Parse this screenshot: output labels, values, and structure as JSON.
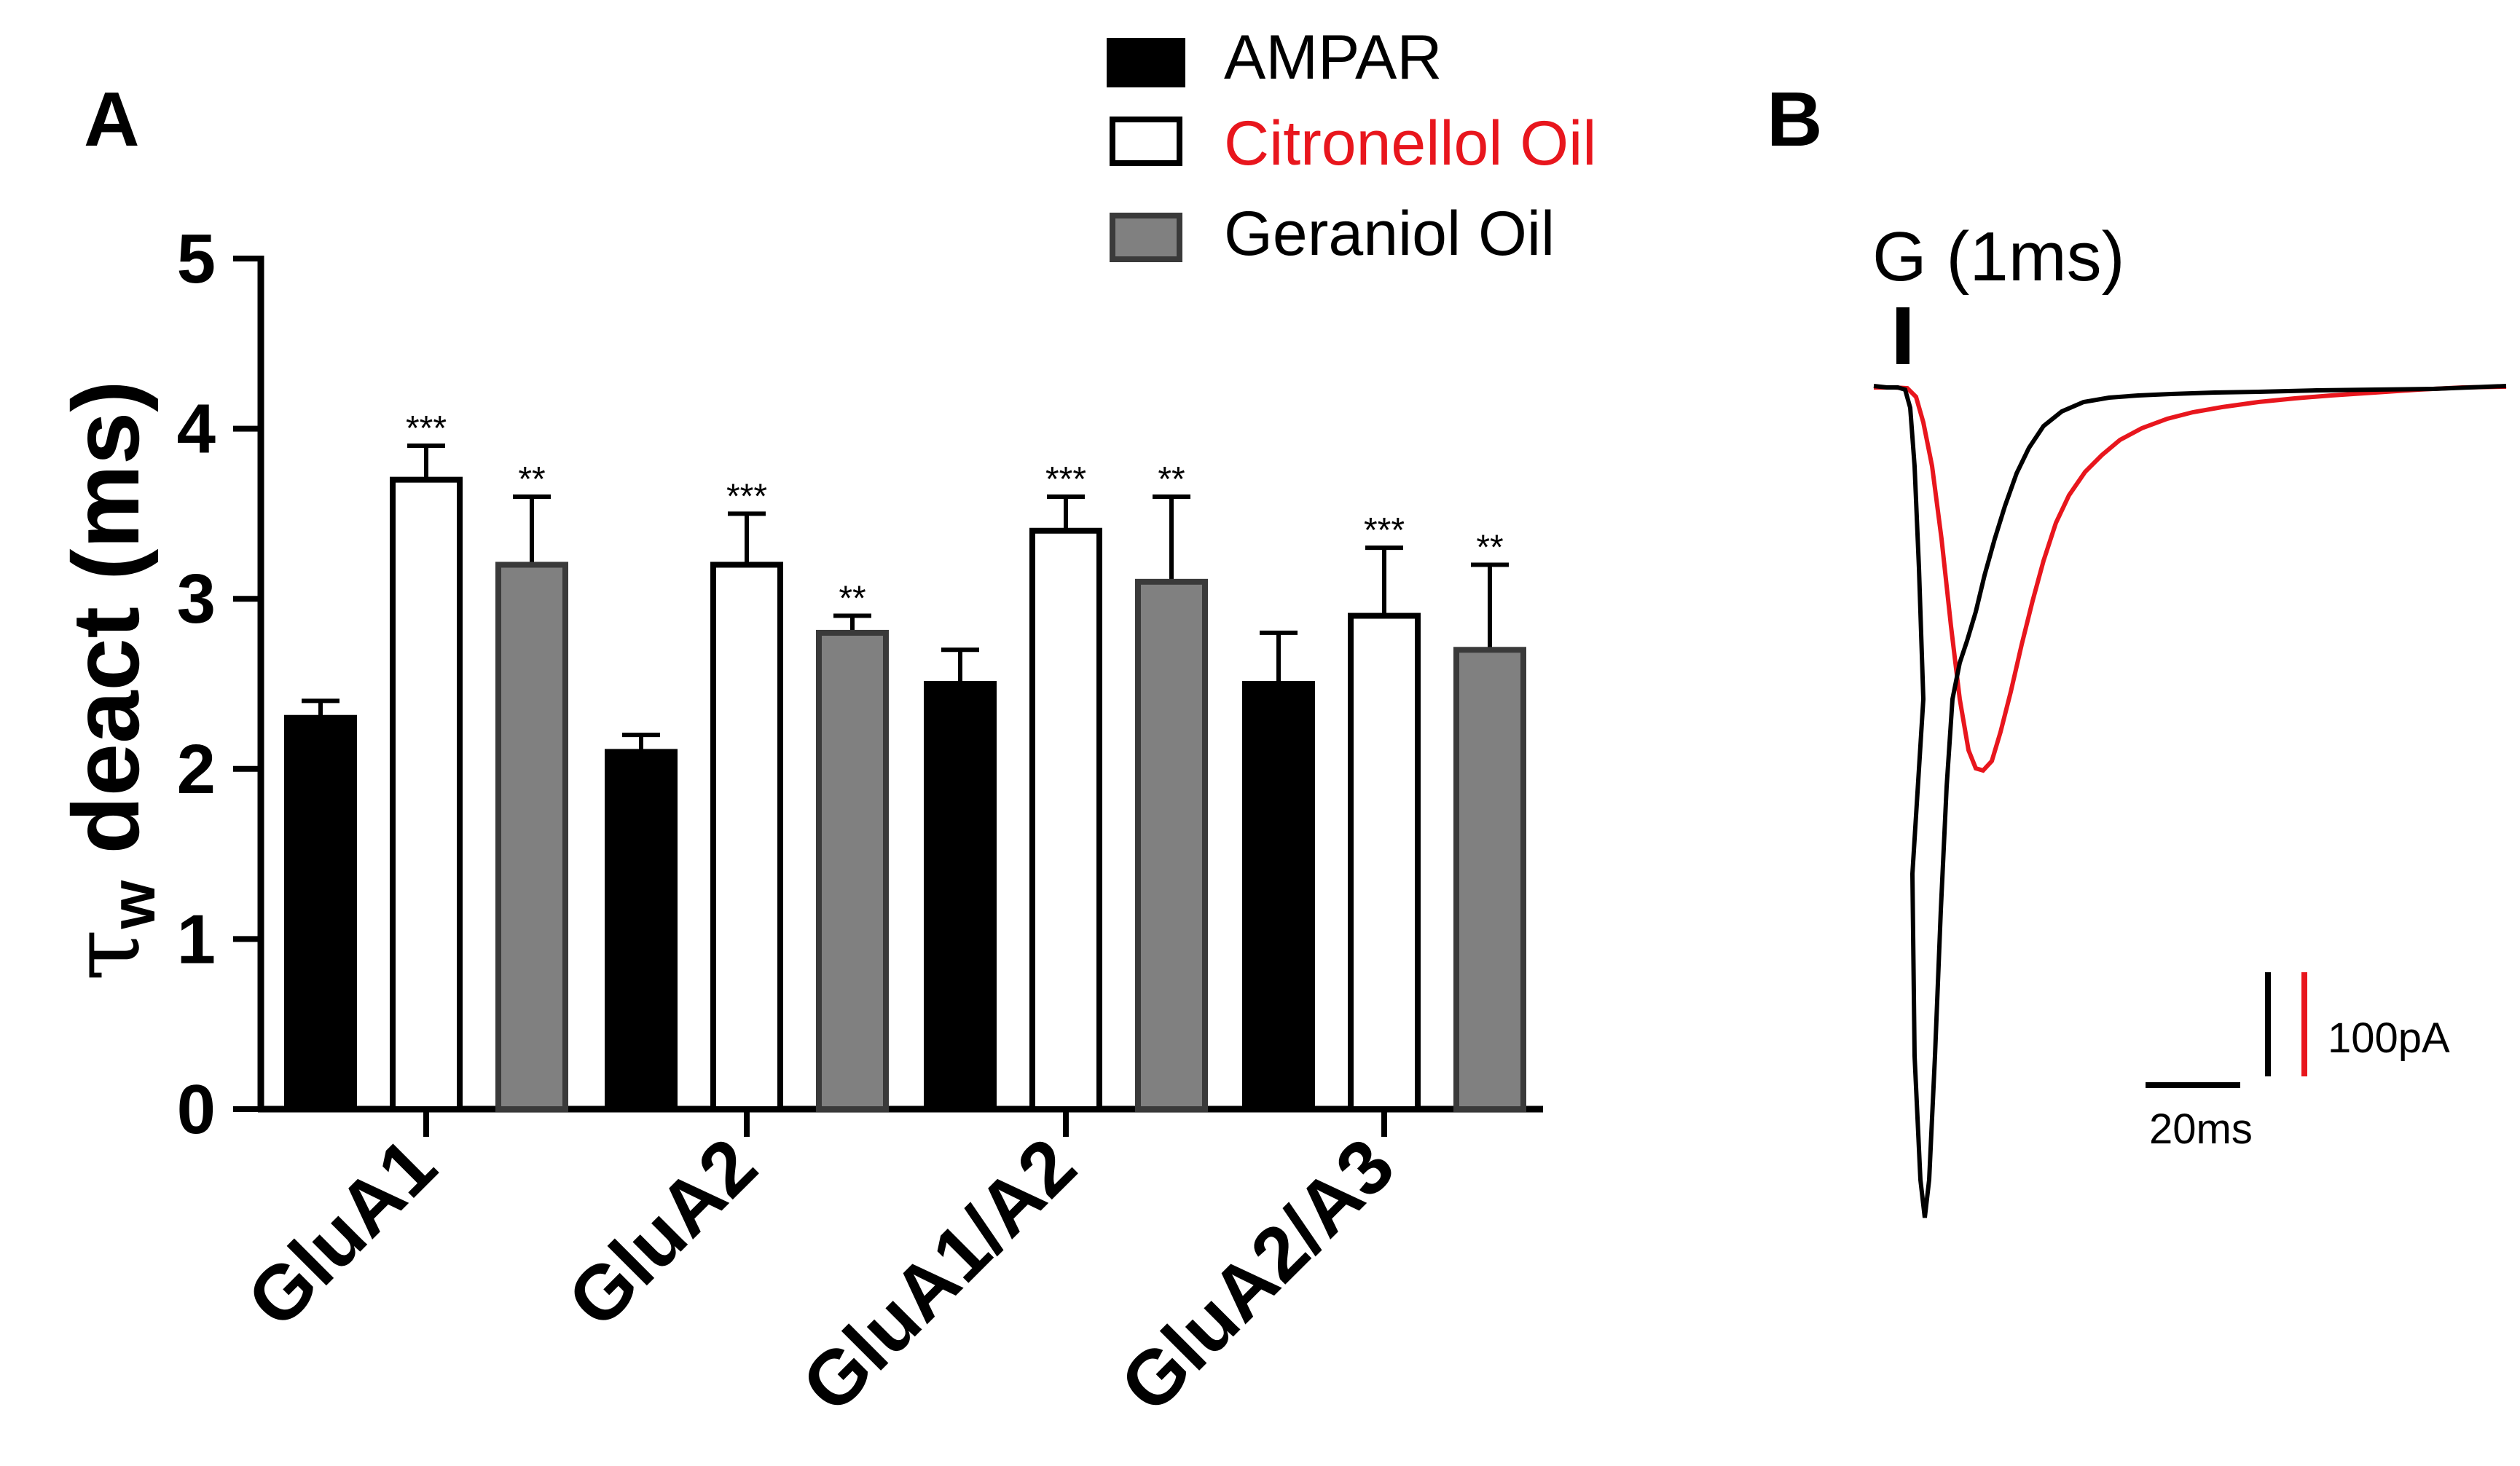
{
  "panel_a": {
    "letter": "A",
    "legend": [
      {
        "label": "AMPAR",
        "fill": "#000000",
        "text_color": "#000000"
      },
      {
        "label": "Citronellol Oil",
        "fill": "#ffffff",
        "text_color": "#e8161d"
      },
      {
        "label": "Geraniol Oil",
        "fill": "#808080",
        "text_color": "#000000"
      }
    ]
  },
  "panel_b": {
    "letter": "B",
    "stimulus_label": "G (1ms)",
    "scale_time": "20ms",
    "scale_current": "100pA",
    "trace_colors": {
      "control": "#000000",
      "treated": "#e8161d"
    }
  },
  "chart_data": {
    "type": "bar",
    "title": "",
    "xlabel": "",
    "ylabel_symbol": "τ",
    "ylabel_subscript": "w",
    "ylabel_rest": " deact (ms)",
    "ylim": [
      0,
      5
    ],
    "yticks": [
      "0",
      "1",
      "2",
      "3",
      "4",
      "5"
    ],
    "categories": [
      "GluA1",
      "GluA2",
      "GluA1/A2",
      "GluA2/A3"
    ],
    "series": [
      {
        "name": "AMPAR",
        "fill": "#000000",
        "values": [
          2.3,
          2.1,
          2.5,
          2.5
        ],
        "errors": [
          0.1,
          0.1,
          0.2,
          0.3
        ],
        "sig": [
          "",
          "",
          "",
          ""
        ]
      },
      {
        "name": "Citronellol Oil",
        "fill": "#ffffff",
        "values": [
          3.7,
          3.2,
          3.4,
          2.9
        ],
        "errors": [
          0.2,
          0.3,
          0.2,
          0.4
        ],
        "sig": [
          "***",
          "***",
          "***",
          "***"
        ]
      },
      {
        "name": "Geraniol Oil",
        "fill": "#808080",
        "values": [
          3.2,
          2.8,
          3.1,
          2.7
        ],
        "errors": [
          0.4,
          0.1,
          0.5,
          0.5
        ],
        "sig": [
          "**",
          "**",
          "**",
          "**"
        ]
      }
    ]
  }
}
